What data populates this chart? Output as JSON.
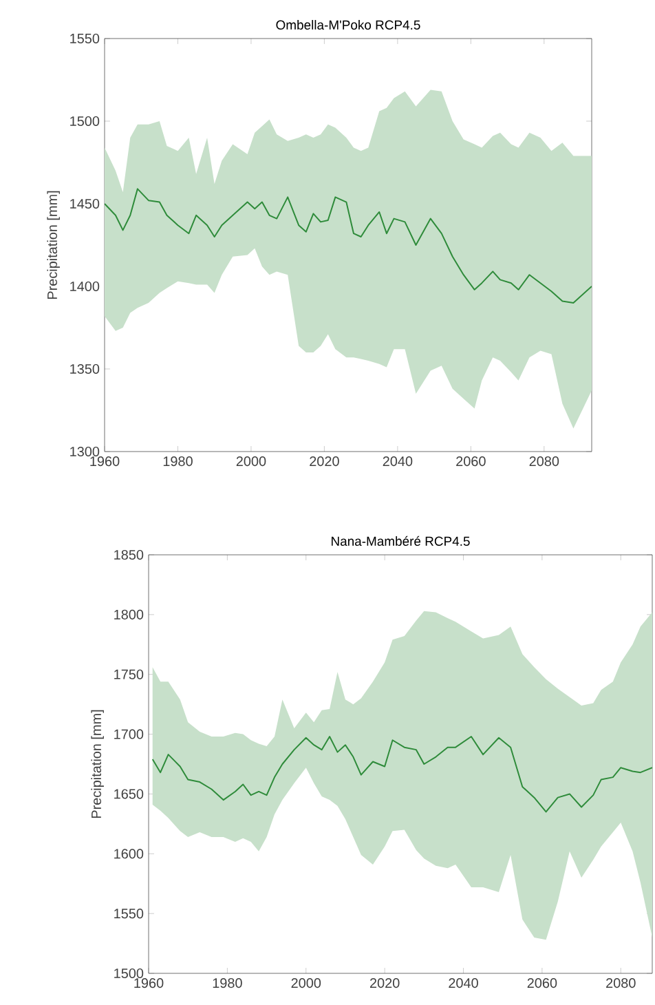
{
  "chart_data": [
    {
      "type": "line",
      "title": "Ombella-M'Poko RCP4.5",
      "ylabel": "Precipitation [mm]",
      "x": [
        1960,
        1963,
        1965,
        1967,
        1969,
        1972,
        1975,
        1977,
        1980,
        1983,
        1985,
        1988,
        1990,
        1992,
        1995,
        1999,
        2001,
        2003,
        2005,
        2007,
        2010,
        2013,
        2015,
        2017,
        2019,
        2021,
        2023,
        2026,
        2028,
        2030,
        2032,
        2035,
        2037,
        2039,
        2042,
        2045,
        2049,
        2052,
        2055,
        2058,
        2061,
        2063,
        2066,
        2068,
        2071,
        2073,
        2076,
        2079,
        2082,
        2085,
        2088,
        2093
      ],
      "series": [
        {
          "color": "#2e8b3a",
          "values": [
            1450,
            1443,
            1434,
            1443,
            1459,
            1452,
            1451,
            1443,
            1437,
            1432,
            1443,
            1437,
            1430,
            1437,
            1443,
            1451,
            1447,
            1451,
            1443,
            1441,
            1454,
            1437,
            1433,
            1444,
            1439,
            1440,
            1454,
            1451,
            1432,
            1430,
            1437,
            1445,
            1432,
            1441,
            1439,
            1425,
            1441,
            1432,
            1418,
            1407,
            1398,
            1402,
            1409,
            1404,
            1402,
            1398,
            1407,
            1402,
            1397,
            1391,
            1390,
            1400
          ],
          "upper": [
            1484,
            1470,
            1457,
            1490,
            1498,
            1498,
            1500,
            1485,
            1482,
            1490,
            1468,
            1490,
            1462,
            1476,
            1486,
            1480,
            1493,
            1497,
            1501,
            1492,
            1488,
            1490,
            1492,
            1490,
            1492,
            1498,
            1496,
            1490,
            1484,
            1482,
            1484,
            1506,
            1508,
            1514,
            1518,
            1509,
            1519,
            1518,
            1500,
            1489,
            1486,
            1484,
            1491,
            1493,
            1486,
            1484,
            1493,
            1490,
            1482,
            1487,
            1479,
            1479
          ],
          "lower": [
            1382,
            1373,
            1375,
            1384,
            1387,
            1390,
            1396,
            1399,
            1403,
            1402,
            1401,
            1401,
            1396,
            1407,
            1418,
            1419,
            1423,
            1412,
            1407,
            1409,
            1407,
            1364,
            1360,
            1360,
            1364,
            1371,
            1362,
            1357,
            1357,
            1356,
            1355,
            1353,
            1351,
            1362,
            1362,
            1335,
            1349,
            1352,
            1338,
            1332,
            1326,
            1343,
            1357,
            1355,
            1348,
            1343,
            1357,
            1361,
            1359,
            1329,
            1314,
            1337
          ]
        }
      ],
      "xlim": [
        1960,
        2093
      ],
      "ylim": [
        1300,
        1550
      ],
      "xticks": [
        1960,
        1980,
        2000,
        2020,
        2040,
        2060,
        2080
      ],
      "yticks": [
        1300,
        1350,
        1400,
        1450,
        1500,
        1550
      ]
    },
    {
      "type": "line",
      "title": "Nana-Mambéré RCP4.5",
      "ylabel": "Precipitation [mm]",
      "x": [
        1961,
        1963,
        1965,
        1968,
        1970,
        1973,
        1976,
        1979,
        1982,
        1984,
        1986,
        1988,
        1990,
        1992,
        1994,
        1997,
        2000,
        2002,
        2004,
        2006,
        2008,
        2010,
        2012,
        2014,
        2017,
        2020,
        2022,
        2025,
        2028,
        2030,
        2033,
        2036,
        2038,
        2042,
        2045,
        2049,
        2052,
        2055,
        2058,
        2061,
        2064,
        2067,
        2070,
        2073,
        2075,
        2078,
        2080,
        2083,
        2085,
        2088
      ],
      "series": [
        {
          "color": "#2e8b3a",
          "values": [
            1679,
            1668,
            1683,
            1673,
            1662,
            1660,
            1654,
            1645,
            1652,
            1658,
            1649,
            1652,
            1649,
            1664,
            1675,
            1687,
            1697,
            1691,
            1687,
            1698,
            1685,
            1691,
            1681,
            1666,
            1677,
            1673,
            1695,
            1689,
            1687,
            1675,
            1681,
            1689,
            1689,
            1698,
            1683,
            1697,
            1689,
            1656,
            1647,
            1635,
            1647,
            1650,
            1639,
            1649,
            1662,
            1664,
            1672,
            1669,
            1668,
            1672
          ],
          "upper": [
            1756,
            1744,
            1744,
            1729,
            1710,
            1702,
            1698,
            1698,
            1701,
            1700,
            1695,
            1692,
            1690,
            1698,
            1729,
            1705,
            1718,
            1710,
            1720,
            1721,
            1752,
            1729,
            1725,
            1730,
            1744,
            1760,
            1779,
            1782,
            1795,
            1803,
            1802,
            1797,
            1794,
            1786,
            1780,
            1783,
            1790,
            1767,
            1756,
            1746,
            1738,
            1731,
            1724,
            1726,
            1737,
            1744,
            1760,
            1775,
            1790,
            1802
          ],
          "lower": [
            1641,
            1636,
            1630,
            1619,
            1614,
            1618,
            1614,
            1614,
            1610,
            1613,
            1610,
            1602,
            1614,
            1633,
            1645,
            1659,
            1672,
            1659,
            1648,
            1645,
            1640,
            1629,
            1614,
            1599,
            1591,
            1606,
            1619,
            1620,
            1603,
            1596,
            1590,
            1588,
            1591,
            1572,
            1572,
            1568,
            1599,
            1545,
            1530,
            1528,
            1560,
            1602,
            1580,
            1595,
            1606,
            1618,
            1626,
            1602,
            1576,
            1530
          ]
        }
      ],
      "xlim": [
        1960,
        2088
      ],
      "ylim": [
        1500,
        1850
      ],
      "xticks": [
        1960,
        1980,
        2000,
        2020,
        2040,
        2060,
        2080
      ],
      "yticks": [
        1500,
        1550,
        1600,
        1650,
        1700,
        1750,
        1800,
        1850
      ]
    }
  ]
}
